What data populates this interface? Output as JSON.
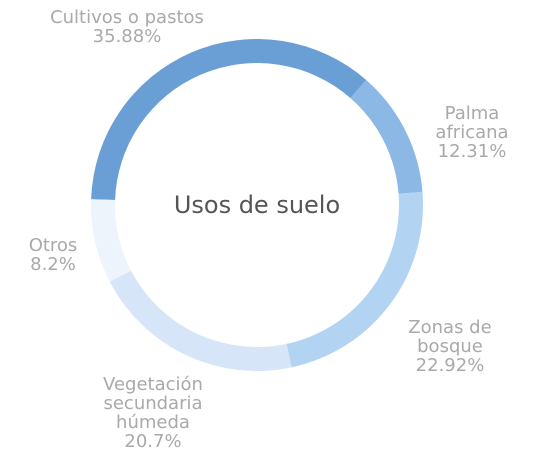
{
  "chart_data": {
    "type": "donut",
    "title": "Usos de suelo",
    "categories": [
      "Cultivos o pastos",
      "Palma africana",
      "Zonas de bosque",
      "Vegetación secundaria húmeda",
      "Otros"
    ],
    "values": [
      35.88,
      12.31,
      22.92,
      20.7,
      8.2
    ],
    "value_labels": [
      "35.88%",
      "12.31%",
      "22.92%",
      "20.7%",
      "8.2%"
    ],
    "colors": [
      "#6a9fd6",
      "#8cb8e6",
      "#b3d3f3",
      "#d6e6f8",
      "#eef4fc"
    ]
  }
}
